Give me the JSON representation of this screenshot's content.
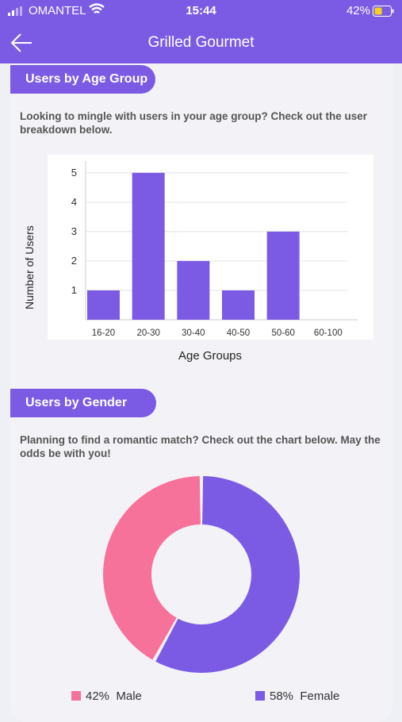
{
  "status_bar": {
    "carrier": "OMANTEL",
    "time": "15:44",
    "battery": "42%"
  },
  "nav": {
    "title": "Grilled Gourmet"
  },
  "age_section": {
    "heading": "Users by Age Group",
    "description": "Looking to mingle with users in your age group? Check out the user breakdown below."
  },
  "gender_section": {
    "heading": "Users by Gender",
    "description": "Planning to find a romantic match? Check out the chart below. May the odds be with you!"
  },
  "chart_data": [
    {
      "type": "bar",
      "categories": [
        "16-20",
        "20-30",
        "30-40",
        "40-50",
        "50-60",
        "60-100"
      ],
      "values": [
        1,
        5,
        2,
        1,
        3,
        0
      ],
      "yticks": [
        "1",
        "2",
        "3",
        "4",
        "5"
      ],
      "ylim": [
        0,
        5.4
      ],
      "xlabel": "Age Groups",
      "ylabel": "Number of Users",
      "grid": true,
      "color": "#7b5be3"
    },
    {
      "type": "pie",
      "donut": true,
      "slices": [
        {
          "label": "Male",
          "value": 42,
          "display": "42%",
          "color": "#f7729a"
        },
        {
          "label": "Female",
          "value": 58,
          "display": "58%",
          "color": "#7b5be3"
        }
      ],
      "legend": "bottom"
    }
  ]
}
